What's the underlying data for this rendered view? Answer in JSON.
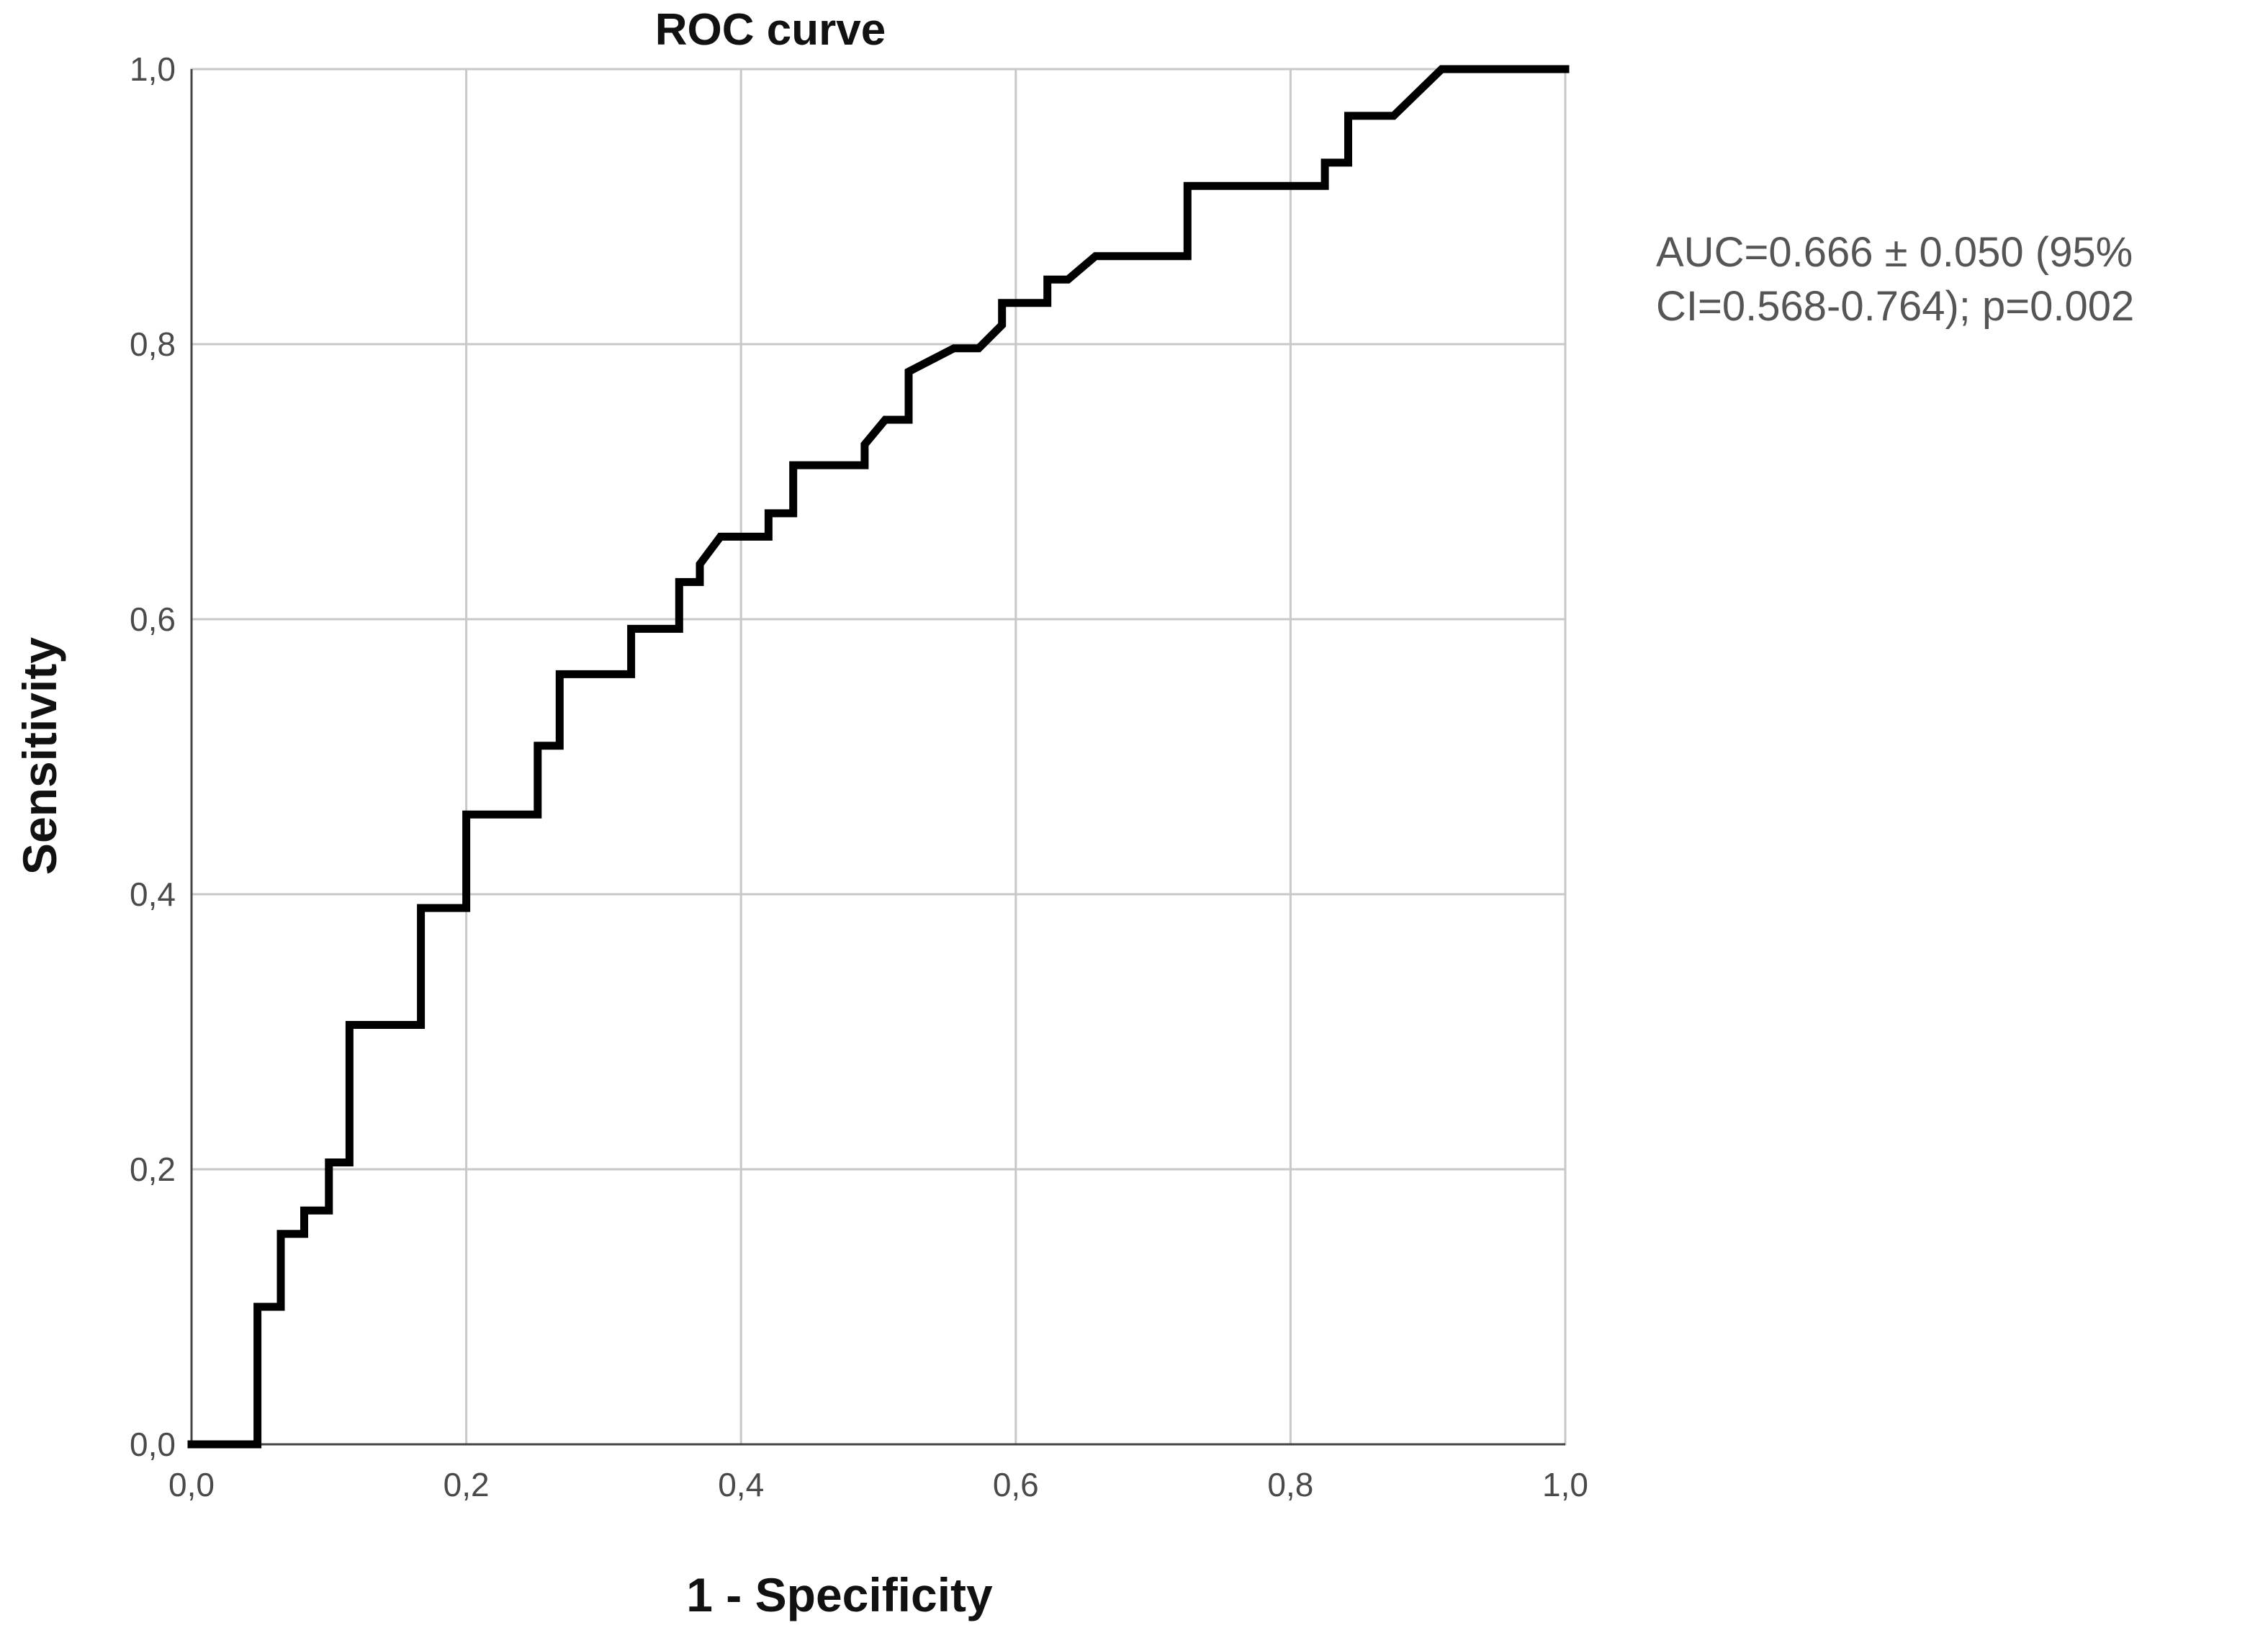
{
  "chart_data": {
    "type": "line",
    "title": "ROC curve",
    "xlabel": "1 - Specificity",
    "ylabel": "Sensitivity",
    "xlim": [
      0,
      1
    ],
    "ylim": [
      0,
      1
    ],
    "grid": true,
    "x_ticks": [
      0,
      0.2,
      0.4,
      0.6,
      0.8,
      1.0
    ],
    "y_ticks": [
      0,
      0.2,
      0.4,
      0.6,
      0.8,
      1.0
    ],
    "x_tick_labels": [
      "0,0",
      "0,2",
      "0,4",
      "0,6",
      "0,8",
      "1,0"
    ],
    "y_tick_labels": [
      "0,0",
      "0,2",
      "0,4",
      "0,6",
      "0,8",
      "1,0"
    ],
    "annotation": [
      "AUC=0.666 ± 0.050 (95%",
      "CI=0.568-0.764); p=0.002"
    ],
    "series": [
      {
        "name": "",
        "color": "#000000",
        "points": [
          [
            0.0,
            0.0
          ],
          [
            0.048,
            0.0
          ],
          [
            0.048,
            0.1
          ],
          [
            0.065,
            0.1
          ],
          [
            0.065,
            0.153
          ],
          [
            0.082,
            0.153
          ],
          [
            0.082,
            0.17
          ],
          [
            0.1,
            0.17
          ],
          [
            0.1,
            0.205
          ],
          [
            0.115,
            0.205
          ],
          [
            0.115,
            0.305
          ],
          [
            0.167,
            0.305
          ],
          [
            0.167,
            0.39
          ],
          [
            0.2,
            0.39
          ],
          [
            0.2,
            0.458
          ],
          [
            0.252,
            0.458
          ],
          [
            0.252,
            0.508
          ],
          [
            0.268,
            0.508
          ],
          [
            0.268,
            0.56
          ],
          [
            0.32,
            0.56
          ],
          [
            0.32,
            0.593
          ],
          [
            0.355,
            0.593
          ],
          [
            0.355,
            0.627
          ],
          [
            0.37,
            0.627
          ],
          [
            0.37,
            0.64
          ],
          [
            0.385,
            0.66
          ],
          [
            0.42,
            0.66
          ],
          [
            0.42,
            0.677
          ],
          [
            0.438,
            0.677
          ],
          [
            0.438,
            0.712
          ],
          [
            0.49,
            0.712
          ],
          [
            0.49,
            0.727
          ],
          [
            0.505,
            0.745
          ],
          [
            0.522,
            0.745
          ],
          [
            0.522,
            0.78
          ],
          [
            0.555,
            0.797
          ],
          [
            0.573,
            0.797
          ],
          [
            0.59,
            0.814
          ],
          [
            0.59,
            0.83
          ],
          [
            0.623,
            0.83
          ],
          [
            0.623,
            0.847
          ],
          [
            0.638,
            0.847
          ],
          [
            0.658,
            0.864
          ],
          [
            0.725,
            0.864
          ],
          [
            0.725,
            0.915
          ],
          [
            0.825,
            0.915
          ],
          [
            0.825,
            0.932
          ],
          [
            0.842,
            0.932
          ],
          [
            0.842,
            0.966
          ],
          [
            0.875,
            0.966
          ],
          [
            0.91,
            1.0
          ],
          [
            1.0,
            1.0
          ]
        ]
      }
    ]
  }
}
